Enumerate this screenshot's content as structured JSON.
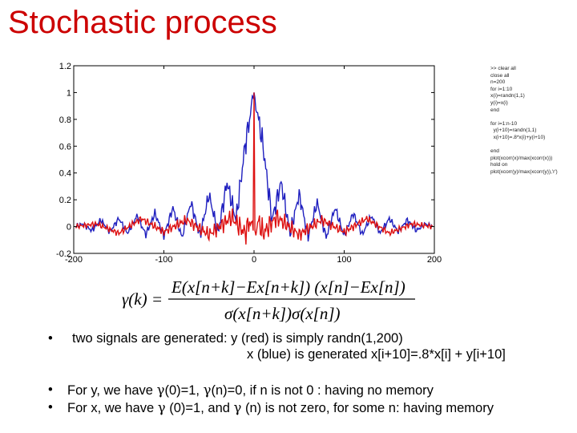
{
  "slide": {
    "title": "Stochastic process",
    "code_lines": [
      ">> clear all",
      "close all",
      "n=200",
      "for i=1:10",
      "x(i)=randn(1,1)",
      "y(i)=x(i)",
      "end",
      "",
      "for i=1:n-10",
      "  y(i+10)=randn(1,1)",
      "  x(i+10)=.8*x(i)+y(i+10)",
      "",
      "end",
      "plot(xcorr(x)/max(xcorr(x)))",
      "hold on",
      "plot(xcorr(y)/max(xcorr(y)),'r')"
    ],
    "bullets_top": [
      {
        "marker": "•",
        "text": "two signals are generated: y (red) is  simply randn(1,200)"
      },
      {
        "marker": "",
        "text": "x (blue) is generated x[i+10]=.8*x[i] + y[i+10]"
      }
    ],
    "bullets_bottom": [
      {
        "marker": "•",
        "pre": "For y, we have ",
        "g1": "γ",
        "mid1": "(0)=1, ",
        "g2": "γ",
        "post": "(n)=0, if n is not 0 :  having no memory"
      },
      {
        "marker": "•",
        "pre": "For x, we have ",
        "g1": "γ",
        "mid1": " (0)=1, and ",
        "g2": "γ",
        "post": " (n) is not zero, for some n: having memory"
      }
    ]
  },
  "chart_data": {
    "type": "line",
    "xlim": [
      -200,
      200
    ],
    "ylim": [
      -0.2,
      1.2
    ],
    "xticks": [
      -200,
      -100,
      0,
      100,
      200
    ],
    "yticks": [
      -0.2,
      0,
      0.2,
      0.4,
      0.6,
      0.8,
      1,
      1.2
    ],
    "xtick_labels": [
      "-200",
      "-100",
      "0",
      "100",
      "200"
    ],
    "ytick_labels": [
      "-0.2",
      "0",
      "0.2",
      "0.4",
      "0.6",
      "0.8",
      "1",
      "1.2"
    ],
    "grid": false,
    "colors": {
      "x": "#1f1fbf",
      "y": "#dd1111"
    },
    "series": [
      {
        "id": "x",
        "x": [
          -198,
          -190,
          -180,
          -170,
          -160,
          -150,
          -140,
          -130,
          -120,
          -110,
          -100,
          -90,
          -80,
          -70,
          -60,
          -50,
          -40,
          -30,
          -20,
          -10,
          0,
          10,
          20,
          30,
          40,
          50,
          60,
          70,
          80,
          90,
          100,
          110,
          120,
          130,
          140,
          150,
          160,
          170,
          180,
          190,
          198
        ],
        "y": [
          0,
          0.02,
          -0.03,
          0.05,
          -0.04,
          0.06,
          -0.05,
          0.08,
          -0.06,
          0.1,
          -0.07,
          0.14,
          -0.08,
          0.18,
          -0.07,
          0.24,
          -0.05,
          0.33,
          0.05,
          0.6,
          1,
          0.6,
          0.05,
          0.33,
          -0.05,
          0.24,
          -0.07,
          0.18,
          -0.08,
          0.14,
          -0.07,
          0.1,
          -0.06,
          0.08,
          -0.05,
          0.06,
          -0.04,
          0.05,
          -0.03,
          0.02,
          0
        ]
      },
      {
        "id": "y",
        "x": [
          -198,
          -175,
          -150,
          -125,
          -100,
          -75,
          -50,
          -25,
          -10,
          -5,
          -1,
          0,
          1,
          5,
          10,
          25,
          50,
          75,
          100,
          125,
          150,
          175,
          198
        ],
        "y": [
          0,
          0.02,
          -0.05,
          0.06,
          -0.04,
          0.05,
          -0.06,
          0.07,
          -0.05,
          0.04,
          -0.03,
          1,
          -0.03,
          0.04,
          -0.05,
          0.07,
          -0.06,
          0.05,
          -0.04,
          0.06,
          -0.05,
          0.02,
          0
        ]
      }
    ]
  }
}
